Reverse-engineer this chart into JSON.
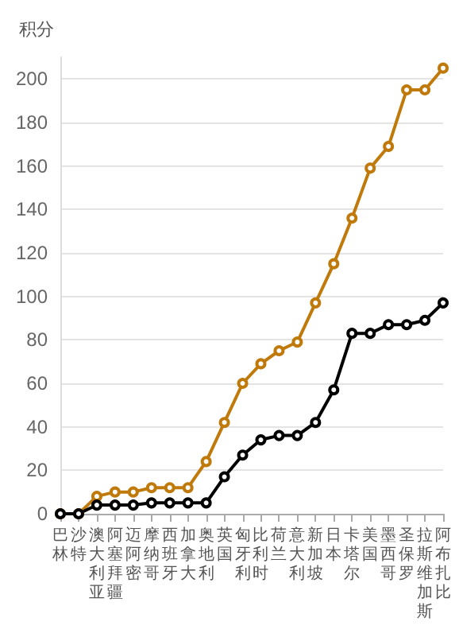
{
  "chart_data": {
    "type": "line",
    "ylabel": "积分",
    "categories": [
      "巴林",
      "沙特",
      "澳大利亚",
      "阿塞拜疆",
      "迈阿密",
      "摩纳哥",
      "西班牙",
      "加拿大",
      "奥地利",
      "英国",
      "匈牙利",
      "比利时",
      "荷兰",
      "意大利",
      "新加坡",
      "日本",
      "卡塔尔",
      "美国",
      "墨西哥",
      "圣保罗",
      "拉斯维加斯",
      "阿布扎比"
    ],
    "series": [
      {
        "color": "#c07a0b",
        "values": [
          0,
          0,
          8,
          10,
          10,
          12,
          12,
          12,
          24,
          42,
          60,
          69,
          75,
          79,
          97,
          115,
          136,
          159,
          169,
          195,
          195,
          205
        ]
      },
      {
        "color": "#000000",
        "values": [
          0,
          0,
          4,
          4,
          4,
          5,
          5,
          5,
          5,
          17,
          27,
          34,
          36,
          36,
          42,
          57,
          83,
          83,
          87,
          87,
          89,
          97
        ]
      }
    ],
    "ylim": [
      0,
      210
    ],
    "yticks": [
      0,
      20,
      40,
      60,
      80,
      100,
      120,
      140,
      160,
      180,
      200
    ],
    "grid": "y",
    "marker": "circle",
    "line_style": "solid"
  }
}
